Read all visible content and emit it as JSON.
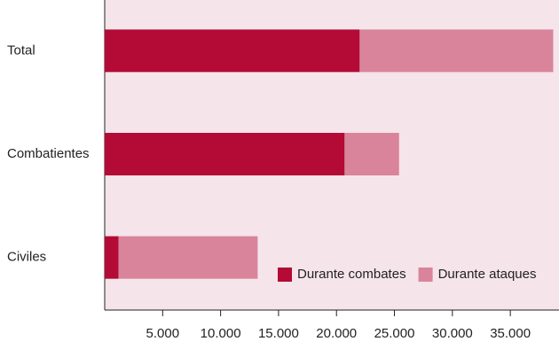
{
  "chart_data": {
    "type": "stacked-barh",
    "categories": [
      "Total",
      "Combatientes",
      "Civiles"
    ],
    "series": [
      {
        "name": "Durante combates",
        "color": "#b30a36",
        "values": [
          22000,
          20700,
          1200
        ]
      },
      {
        "name": "Durante ataques",
        "color": "#d9849b",
        "values": [
          16700,
          4700,
          12000
        ]
      }
    ],
    "xlim": [
      0,
      39200
    ],
    "xticks": [
      {
        "value": 5000,
        "label": "5.000"
      },
      {
        "value": 10000,
        "label": "10.000"
      },
      {
        "value": 15000,
        "label": "15.000"
      },
      {
        "value": 20000,
        "label": "20.000"
      },
      {
        "value": 25000,
        "label": "25.000"
      },
      {
        "value": 30000,
        "label": "30.000"
      },
      {
        "value": 35000,
        "label": "35.000"
      }
    ],
    "legend": "lower right"
  }
}
